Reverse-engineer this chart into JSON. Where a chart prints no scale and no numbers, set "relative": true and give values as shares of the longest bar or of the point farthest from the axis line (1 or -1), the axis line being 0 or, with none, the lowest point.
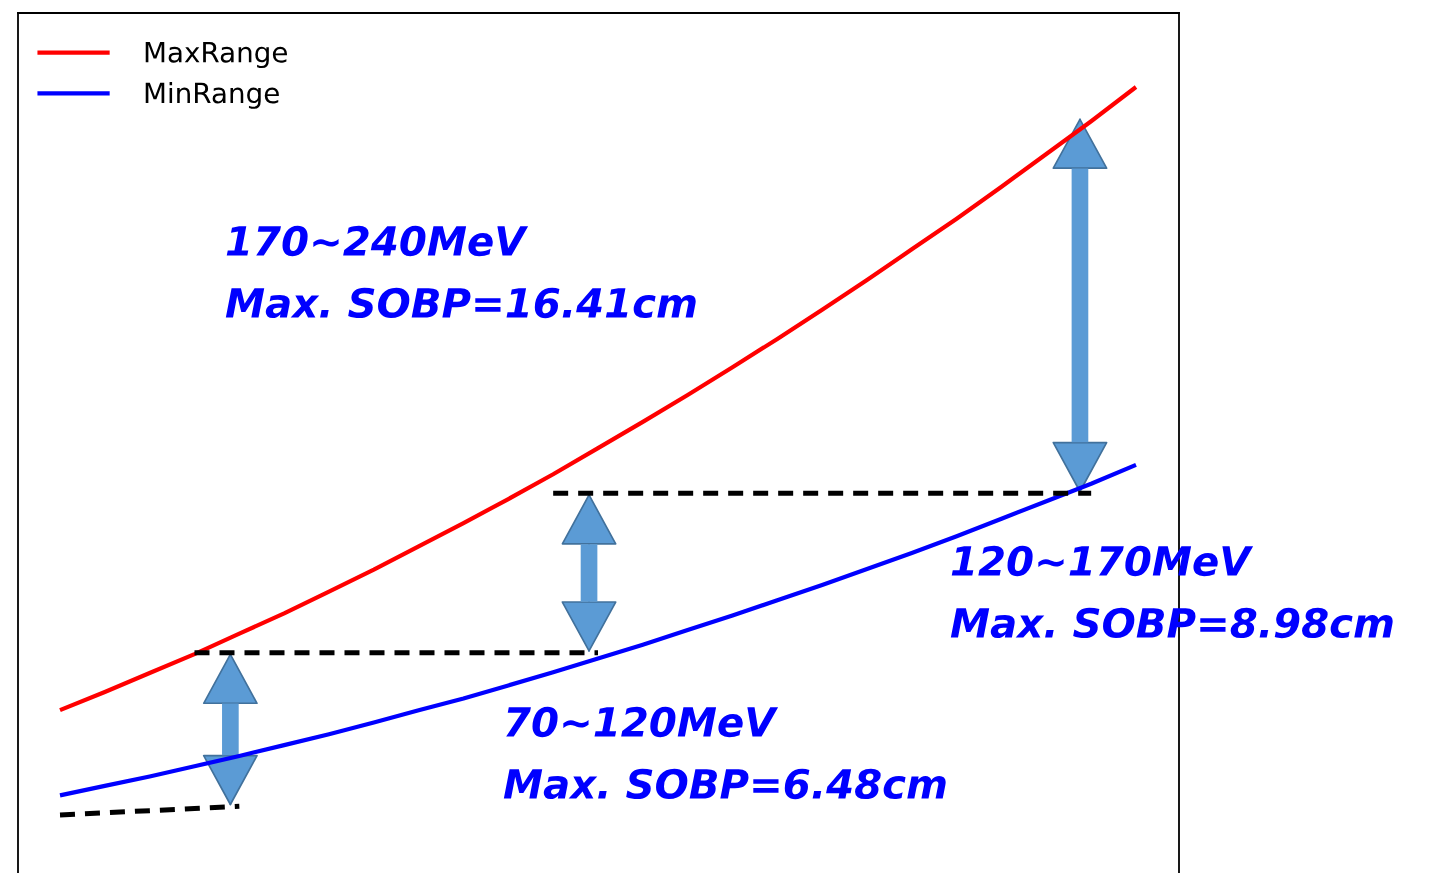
{
  "chart_data": {
    "type": "line",
    "relative": true,
    "legend": "top left",
    "categories": [
      null,
      null,
      null,
      null,
      null,
      null,
      null,
      null,
      null,
      null,
      null,
      null,
      null,
      null,
      null,
      null,
      null,
      null,
      null,
      null,
      null,
      null,
      null,
      null,
      null
    ],
    "series": [
      {
        "name": "MaxRange",
        "color": "#ff0000",
        "values": [
          0.144,
          0.169,
          0.195,
          0.221,
          0.249,
          0.277,
          0.307,
          0.337,
          0.369,
          0.401,
          0.434,
          0.468,
          0.504,
          0.54,
          0.577,
          0.615,
          0.654,
          0.694,
          0.735,
          0.777,
          0.819,
          0.863,
          0.908,
          0.953,
          1.0
        ]
      },
      {
        "name": "MinRange",
        "color": "#0000ff",
        "values": [
          0.027,
          0.04,
          0.053,
          0.067,
          0.081,
          0.096,
          0.111,
          0.127,
          0.144,
          0.16,
          0.178,
          0.196,
          0.215,
          0.234,
          0.254,
          0.274,
          0.295,
          0.316,
          0.338,
          0.36,
          0.383,
          0.407,
          0.431,
          0.455,
          0.481
        ]
      },
      {
        "color": "#000000",
        "line_style": "dashed",
        "values": [
          0.0,
          0.003,
          0.006,
          0.009,
          0.012,
          null,
          null,
          null,
          null,
          null,
          null,
          null,
          null,
          null,
          null,
          null,
          null,
          null,
          null,
          null,
          null,
          null,
          null,
          null,
          null
        ]
      },
      {
        "color": "#000000",
        "line_style": "dashed",
        "values": [
          null,
          null,
          null,
          0.223,
          0.223,
          0.223,
          0.223,
          0.223,
          0.223,
          0.223,
          0.223,
          0.223,
          0.223,
          null,
          null,
          null,
          null,
          null,
          null,
          null,
          null,
          null,
          null,
          null,
          null
        ]
      },
      {
        "color": "#000000",
        "line_style": "dashed",
        "values": [
          null,
          null,
          null,
          null,
          null,
          null,
          null,
          null,
          null,
          null,
          null,
          0.442,
          0.442,
          0.442,
          0.442,
          0.442,
          0.442,
          0.442,
          0.442,
          0.442,
          0.442,
          0.442,
          0.442,
          0.442,
          null
        ]
      }
    ],
    "annotations": [
      "170~240MeV\nMax. SOBP=16.41cm",
      "120~170MeV\nMax. SOBP=8.98cm",
      "70~120MeV\nMax. SOBP=6.48cm"
    ]
  }
}
